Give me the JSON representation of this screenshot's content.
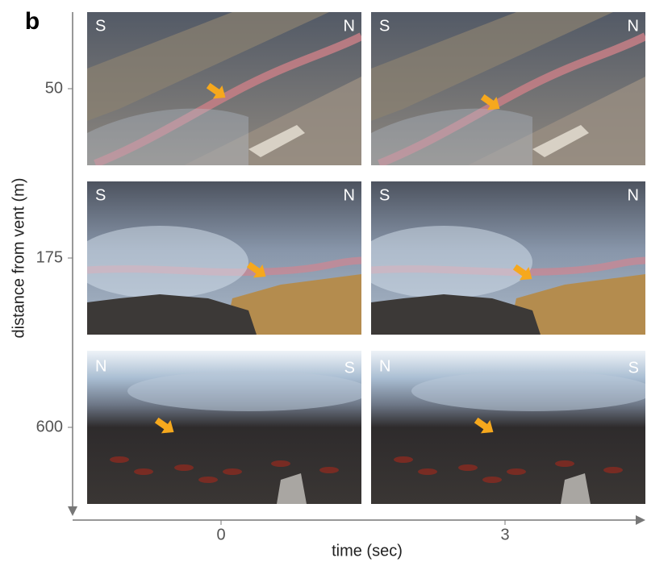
{
  "panel_label": "b",
  "y_axis": {
    "label": "distance from vent (m)"
  },
  "x_axis": {
    "label": "time (sec)",
    "ticks": [
      "0",
      "3"
    ]
  },
  "rows": [
    {
      "distance": "50",
      "photos": [
        {
          "left": "S",
          "right": "N"
        },
        {
          "left": "S",
          "right": "N"
        }
      ]
    },
    {
      "distance": "175",
      "photos": [
        {
          "left": "S",
          "right": "N"
        },
        {
          "left": "S",
          "right": "N"
        }
      ]
    },
    {
      "distance": "600",
      "photos": [
        {
          "left": "N",
          "right": "S"
        },
        {
          "left": "N",
          "right": "S"
        }
      ]
    }
  ]
}
